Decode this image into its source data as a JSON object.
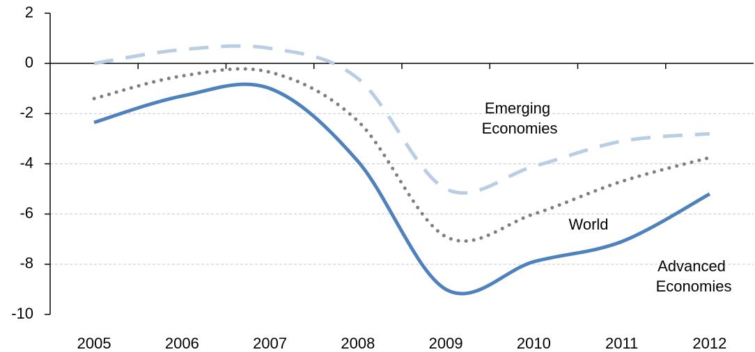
{
  "chart_data": {
    "type": "line",
    "categories": [
      "2005",
      "2006",
      "2007",
      "2008",
      "2009",
      "2010",
      "2011",
      "2012"
    ],
    "series": [
      {
        "name": "Advanced Economies",
        "color": "#4f81bd",
        "style": "solid",
        "values": [
          -2.35,
          -1.3,
          -1.0,
          -3.9,
          -9.0,
          -7.9,
          -7.1,
          -5.2
        ]
      },
      {
        "name": "World",
        "color": "#7f7f7f",
        "style": "dotted",
        "values": [
          -1.4,
          -0.5,
          -0.35,
          -2.3,
          -6.9,
          -6.0,
          -4.7,
          -3.75
        ]
      },
      {
        "name": "Emerging Economies",
        "color": "#b9cde5",
        "style": "dashed",
        "values": [
          0.0,
          0.55,
          0.6,
          -0.6,
          -5.0,
          -4.1,
          -3.1,
          -2.8
        ]
      }
    ],
    "ylim": [
      -10,
      2
    ],
    "yticks": [
      -10,
      -8,
      -6,
      -4,
      -2,
      0,
      2
    ],
    "grid": true
  }
}
